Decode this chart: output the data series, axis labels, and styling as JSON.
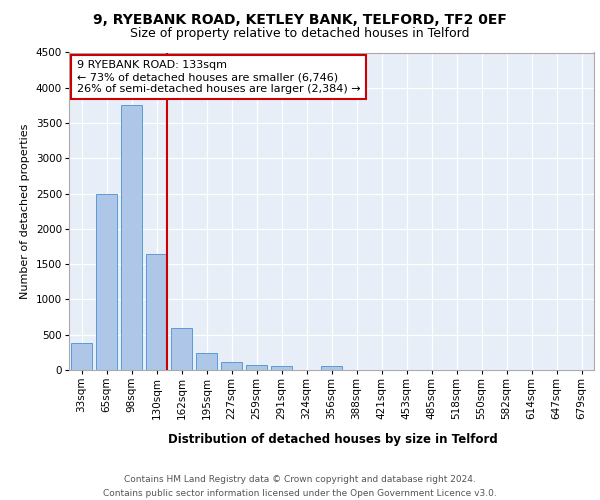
{
  "title1": "9, RYEBANK ROAD, KETLEY BANK, TELFORD, TF2 0EF",
  "title2": "Size of property relative to detached houses in Telford",
  "xlabel": "Distribution of detached houses by size in Telford",
  "ylabel": "Number of detached properties",
  "categories": [
    "33sqm",
    "65sqm",
    "98sqm",
    "130sqm",
    "162sqm",
    "195sqm",
    "227sqm",
    "259sqm",
    "291sqm",
    "324sqm",
    "356sqm",
    "388sqm",
    "421sqm",
    "453sqm",
    "485sqm",
    "518sqm",
    "550sqm",
    "582sqm",
    "614sqm",
    "647sqm",
    "679sqm"
  ],
  "values": [
    380,
    2500,
    3750,
    1640,
    600,
    240,
    110,
    65,
    50,
    0,
    60,
    0,
    0,
    0,
    0,
    0,
    0,
    0,
    0,
    0,
    0
  ],
  "bar_color": "#aec6e8",
  "bar_edge_color": "#5b9bd5",
  "highlight_bar_index": 3,
  "highlight_line_color": "#cc0000",
  "annotation_text": "9 RYEBANK ROAD: 133sqm\n← 73% of detached houses are smaller (6,746)\n26% of semi-detached houses are larger (2,384) →",
  "annotation_box_color": "#ffffff",
  "annotation_box_edge_color": "#cc0000",
  "ylim": [
    0,
    4500
  ],
  "yticks": [
    0,
    500,
    1000,
    1500,
    2000,
    2500,
    3000,
    3500,
    4000,
    4500
  ],
  "background_color": "#e8eef8",
  "footer_text": "Contains HM Land Registry data © Crown copyright and database right 2024.\nContains public sector information licensed under the Open Government Licence v3.0.",
  "title1_fontsize": 10,
  "title2_fontsize": 9,
  "xlabel_fontsize": 8.5,
  "ylabel_fontsize": 8,
  "tick_fontsize": 7.5,
  "annotation_fontsize": 8,
  "footer_fontsize": 6.5
}
